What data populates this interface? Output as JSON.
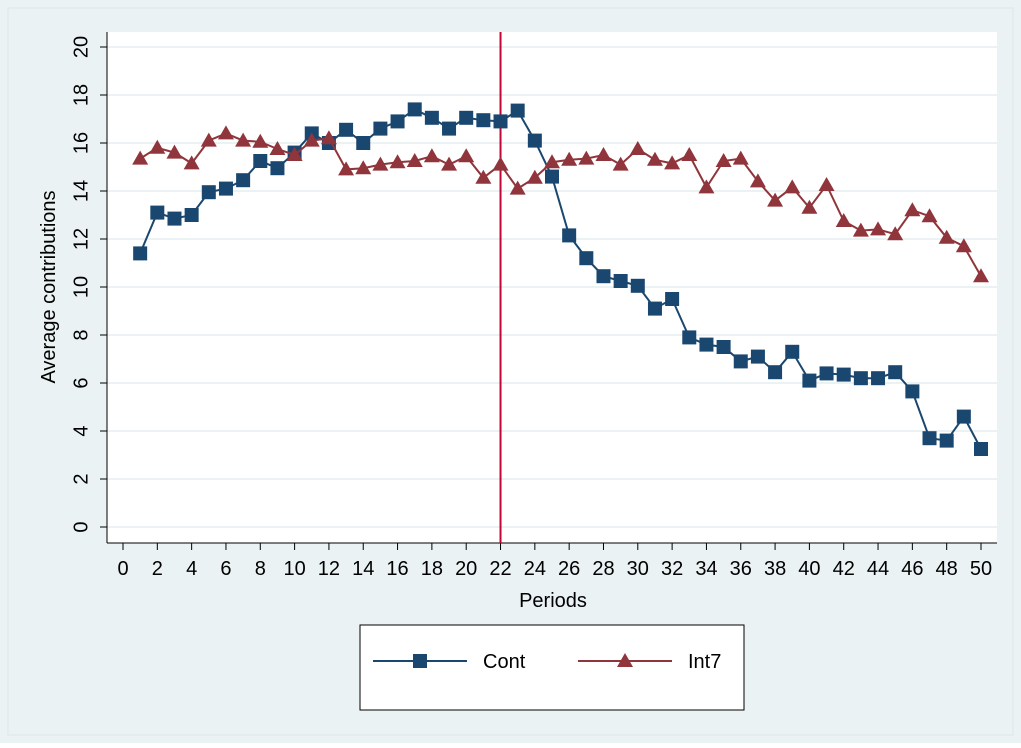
{
  "chart_data": {
    "type": "line",
    "x_label": "Periods",
    "y_label": "Average contributions",
    "x": [
      1,
      2,
      3,
      4,
      5,
      6,
      7,
      8,
      9,
      10,
      11,
      12,
      13,
      14,
      15,
      16,
      17,
      18,
      19,
      20,
      21,
      22,
      23,
      24,
      25,
      26,
      27,
      28,
      29,
      30,
      31,
      32,
      33,
      34,
      35,
      36,
      37,
      38,
      39,
      40,
      41,
      42,
      43,
      44,
      45,
      46,
      47,
      48,
      49,
      50
    ],
    "series": [
      {
        "name": "Cont",
        "color": "#1a476f",
        "marker": "square",
        "values": [
          11.4,
          13.1,
          12.85,
          13.0,
          13.95,
          14.1,
          14.45,
          15.25,
          14.95,
          15.6,
          16.4,
          16.0,
          16.55,
          16.0,
          16.6,
          16.9,
          17.4,
          17.05,
          16.6,
          17.05,
          16.95,
          16.9,
          17.35,
          16.1,
          14.6,
          12.15,
          11.2,
          10.45,
          10.25,
          10.05,
          9.1,
          9.5,
          7.9,
          7.6,
          7.5,
          6.9,
          7.1,
          6.45,
          7.3,
          6.1,
          6.4,
          6.35,
          6.2,
          6.2,
          6.45,
          5.65,
          3.7,
          3.6,
          4.6,
          3.25
        ]
      },
      {
        "name": "Int7",
        "color": "#90353b",
        "marker": "triangle",
        "values": [
          15.35,
          15.8,
          15.6,
          15.15,
          16.1,
          16.4,
          16.1,
          16.05,
          15.75,
          15.5,
          16.1,
          16.2,
          14.9,
          14.95,
          15.1,
          15.2,
          15.25,
          15.45,
          15.1,
          15.45,
          14.55,
          15.1,
          14.1,
          14.55,
          15.2,
          15.3,
          15.35,
          15.5,
          15.1,
          15.75,
          15.3,
          15.15,
          15.5,
          14.15,
          15.25,
          15.35,
          14.4,
          13.6,
          14.15,
          13.3,
          14.25,
          12.75,
          12.35,
          12.4,
          12.2,
          13.2,
          12.95,
          12.05,
          11.7,
          10.45
        ]
      }
    ],
    "vline": 22,
    "vline_color": "#c10534",
    "xlim": [
      0,
      50
    ],
    "xticks": [
      0,
      2,
      4,
      6,
      8,
      10,
      12,
      14,
      16,
      18,
      20,
      22,
      24,
      26,
      28,
      30,
      32,
      34,
      36,
      38,
      40,
      42,
      44,
      46,
      48,
      50
    ],
    "ylim": [
      0,
      20
    ],
    "yticks": [
      0,
      2,
      4,
      6,
      8,
      10,
      12,
      14,
      16,
      18,
      20
    ],
    "grid": true,
    "legend": "bottom"
  }
}
